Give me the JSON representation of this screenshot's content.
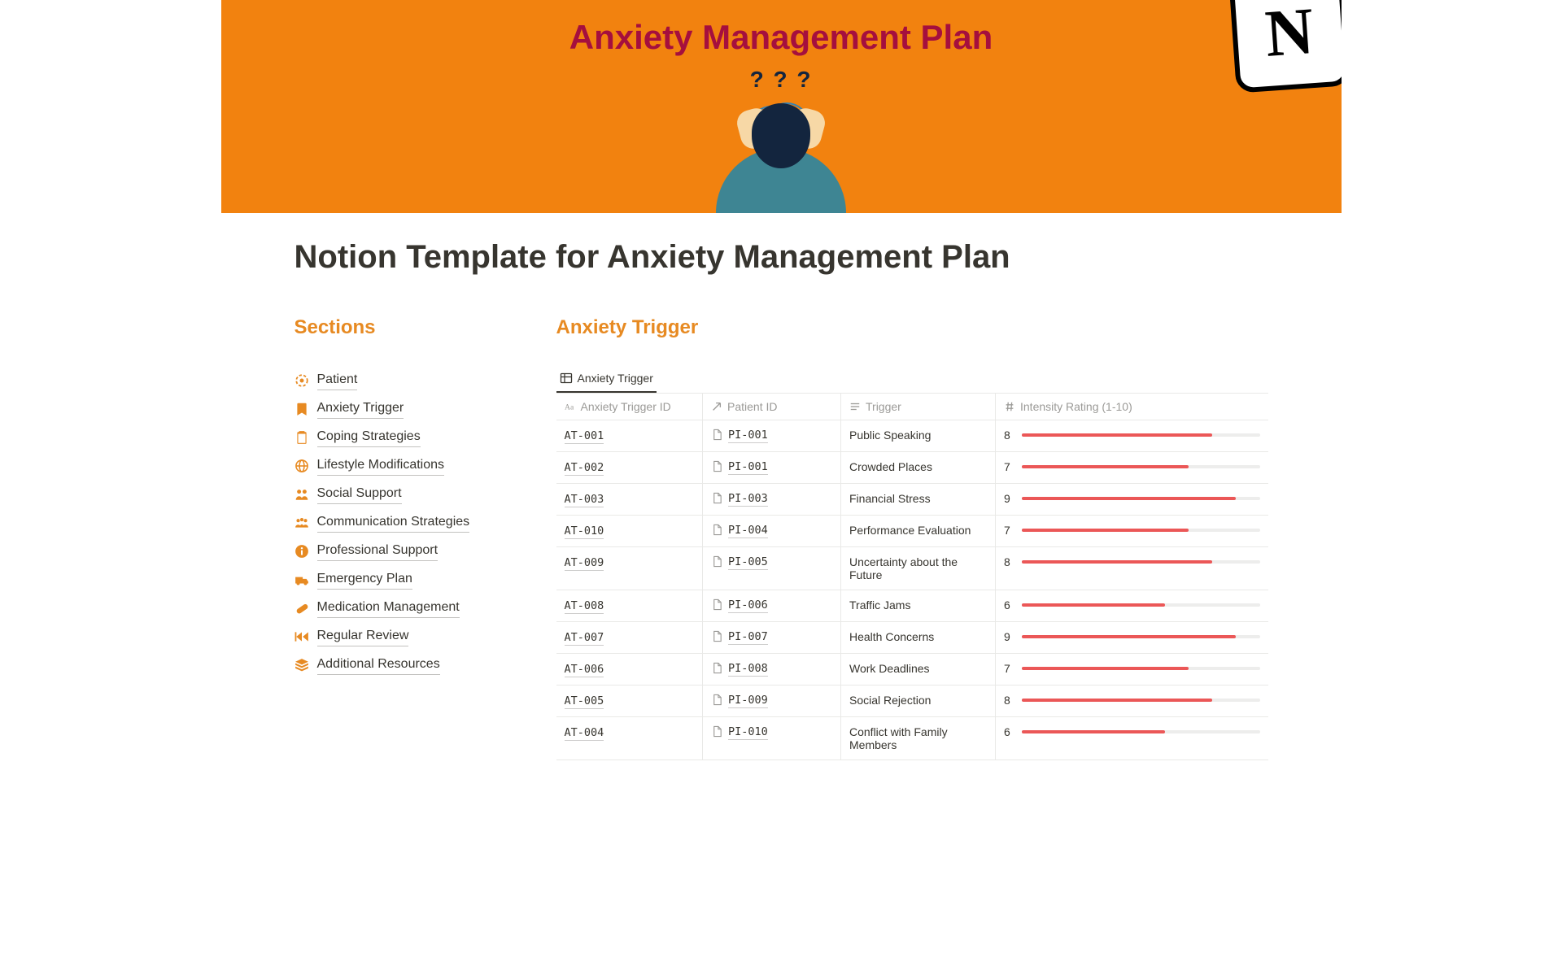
{
  "banner": {
    "title_line": "Anxiety Management Plan",
    "qmarks": "? ? ?",
    "logo_letter": "N",
    "bg_color": "#f2820f",
    "title_color": "#a50f3e"
  },
  "page": {
    "title": "Notion Template for Anxiety Management Plan"
  },
  "sidebar": {
    "heading": "Sections",
    "items": [
      {
        "icon": "target-icon",
        "label": "Patient"
      },
      {
        "icon": "bookmark-icon",
        "label": "Anxiety Trigger"
      },
      {
        "icon": "clipboard-icon",
        "label": "Coping Strategies"
      },
      {
        "icon": "globe-icon",
        "label": "Lifestyle Modifications"
      },
      {
        "icon": "people-icon",
        "label": "Social Support"
      },
      {
        "icon": "group-icon",
        "label": "Communication Strategies"
      },
      {
        "icon": "info-icon",
        "label": "Professional Support"
      },
      {
        "icon": "ambulance-icon",
        "label": "Emergency Plan"
      },
      {
        "icon": "pill-icon",
        "label": "Medication Management"
      },
      {
        "icon": "rewind-icon",
        "label": "Regular Review"
      },
      {
        "icon": "layers-icon",
        "label": "Additional Resources"
      }
    ]
  },
  "main": {
    "heading": "Anxiety Trigger",
    "tab_label": "Anxiety Trigger",
    "columns": {
      "atid": "Anxiety Trigger ID",
      "pid": "Patient ID",
      "trigger": "Trigger",
      "intensity": "Intensity Rating (1-10)"
    },
    "intensity_max": 10,
    "bar_color": "#eb5757",
    "bar_bg": "#ededec",
    "rows": [
      {
        "atid": "AT-001",
        "pid": "PI-001",
        "trigger": "Public Speaking",
        "intensity": 8
      },
      {
        "atid": "AT-002",
        "pid": "PI-001",
        "trigger": "Crowded Places",
        "intensity": 7
      },
      {
        "atid": "AT-003",
        "pid": "PI-003",
        "trigger": "Financial Stress",
        "intensity": 9
      },
      {
        "atid": "AT-010",
        "pid": "PI-004",
        "trigger": "Performance Evaluation",
        "intensity": 7
      },
      {
        "atid": "AT-009",
        "pid": "PI-005",
        "trigger": "Uncertainty about the Future",
        "intensity": 8
      },
      {
        "atid": "AT-008",
        "pid": "PI-006",
        "trigger": "Traffic Jams",
        "intensity": 6
      },
      {
        "atid": "AT-007",
        "pid": "PI-007",
        "trigger": "Health Concerns",
        "intensity": 9
      },
      {
        "atid": "AT-006",
        "pid": "PI-008",
        "trigger": "Work Deadlines",
        "intensity": 7
      },
      {
        "atid": "AT-005",
        "pid": "PI-009",
        "trigger": "Social Rejection",
        "intensity": 8
      },
      {
        "atid": "AT-004",
        "pid": "PI-010",
        "trigger": "Conflict with Family Members",
        "intensity": 6
      }
    ]
  }
}
